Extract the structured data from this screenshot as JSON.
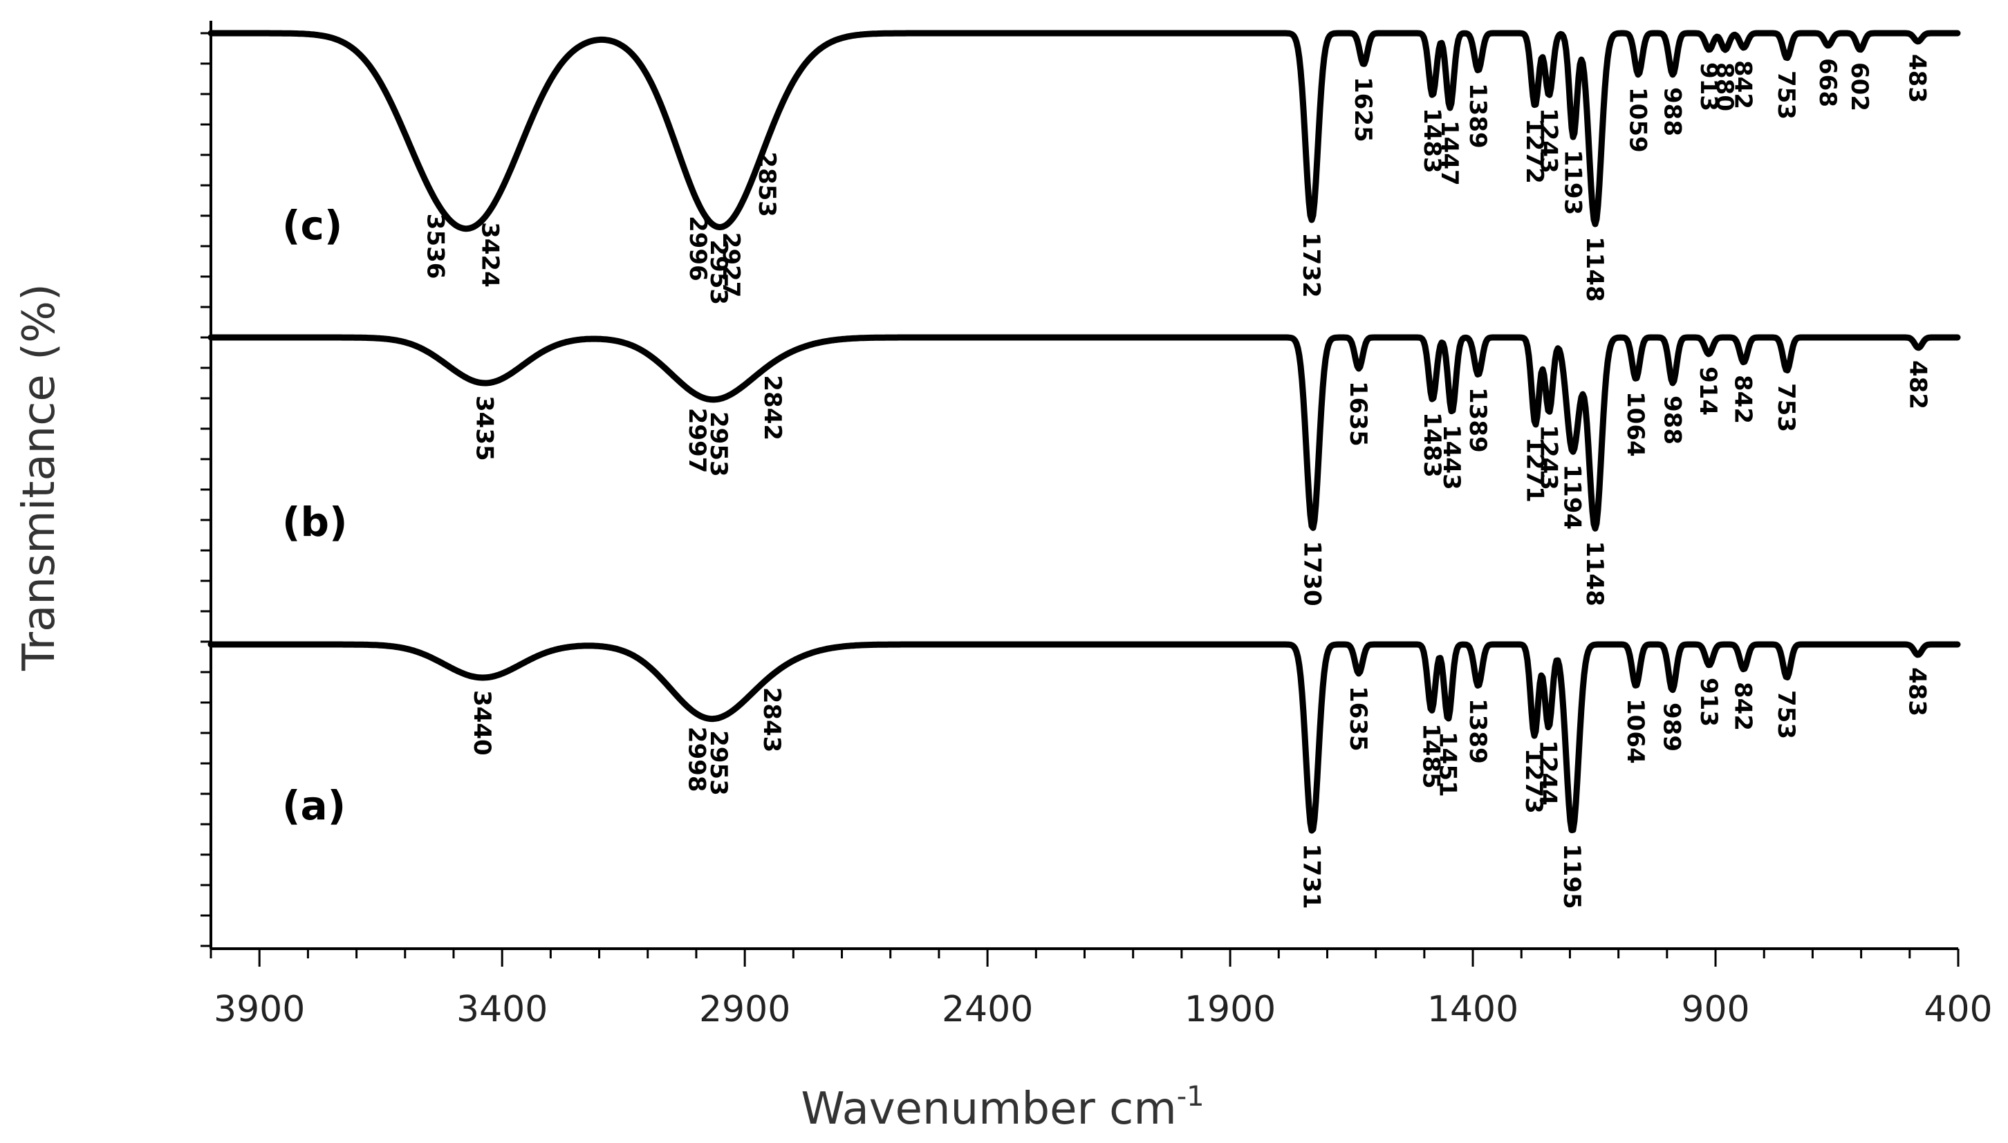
{
  "chart_data": {
    "type": "line",
    "title": "",
    "xlabel": "Wavenumber cm",
    "xlabel_sup": "-1",
    "ylabel": "Transmitance (%)",
    "xlim": [
      4000,
      400
    ],
    "xticks": [
      3900,
      3400,
      2900,
      2400,
      1900,
      1400,
      900,
      400
    ],
    "xtick_labels": [
      "3900",
      "3400",
      "2900",
      "2400",
      "1900",
      "1400",
      "900",
      "400"
    ],
    "grid": false,
    "series": [
      {
        "name": "(c)",
        "label": "(c)",
        "peaks": [
          {
            "wn": 3536,
            "label": "3536",
            "depth": 0.55
          },
          {
            "wn": 3424,
            "label": "3424",
            "depth": 0.62
          },
          {
            "wn": 2996,
            "label": "2996",
            "depth": 0.3
          },
          {
            "wn": 2953,
            "label": "2953",
            "depth": 0.36
          },
          {
            "wn": 2927,
            "label": "2927",
            "depth": 0.28
          },
          {
            "wn": 2853,
            "label": "2853",
            "depth": 0.12
          },
          {
            "wn": 1732,
            "label": "1732",
            "depth": 0.9
          },
          {
            "wn": 1625,
            "label": "1625",
            "depth": 0.15
          },
          {
            "wn": 1483,
            "label": "1483",
            "depth": 0.3
          },
          {
            "wn": 1447,
            "label": "1447",
            "depth": 0.36
          },
          {
            "wn": 1389,
            "label": "1389",
            "depth": 0.18
          },
          {
            "wn": 1272,
            "label": "1272",
            "depth": 0.35
          },
          {
            "wn": 1243,
            "label": "1243",
            "depth": 0.3
          },
          {
            "wn": 1193,
            "label": "1193",
            "depth": 0.5
          },
          {
            "wn": 1148,
            "label": "1148",
            "depth": 0.92
          },
          {
            "wn": 1059,
            "label": "1059",
            "depth": 0.2
          },
          {
            "wn": 988,
            "label": "988",
            "depth": 0.2
          },
          {
            "wn": 913,
            "label": "913",
            "depth": 0.08
          },
          {
            "wn": 880,
            "label": "880",
            "depth": 0.08
          },
          {
            "wn": 842,
            "label": "842",
            "depth": 0.07
          },
          {
            "wn": 753,
            "label": "753",
            "depth": 0.12
          },
          {
            "wn": 668,
            "label": "668",
            "depth": 0.06
          },
          {
            "wn": 602,
            "label": "602",
            "depth": 0.08
          },
          {
            "wn": 483,
            "label": "483",
            "depth": 0.04
          }
        ]
      },
      {
        "name": "(b)",
        "label": "(b)",
        "peaks": [
          {
            "wn": 3435,
            "label": "3435",
            "depth": 0.22
          },
          {
            "wn": 2997,
            "label": "2997",
            "depth": 0.12
          },
          {
            "wn": 2953,
            "label": "2953",
            "depth": 0.18
          },
          {
            "wn": 2842,
            "label": "2842",
            "depth": 0.04
          },
          {
            "wn": 1730,
            "label": "1730",
            "depth": 0.92
          },
          {
            "wn": 1635,
            "label": "1635",
            "depth": 0.15
          },
          {
            "wn": 1483,
            "label": "1483",
            "depth": 0.3
          },
          {
            "wn": 1443,
            "label": "1443",
            "depth": 0.36
          },
          {
            "wn": 1389,
            "label": "1389",
            "depth": 0.18
          },
          {
            "wn": 1271,
            "label": "1271",
            "depth": 0.42
          },
          {
            "wn": 1243,
            "label": "1243",
            "depth": 0.36
          },
          {
            "wn": 1194,
            "label": "1194",
            "depth": 0.55
          },
          {
            "wn": 1148,
            "label": "1148",
            "depth": 0.92
          },
          {
            "wn": 1064,
            "label": "1064",
            "depth": 0.2
          },
          {
            "wn": 988,
            "label": "988",
            "depth": 0.22
          },
          {
            "wn": 914,
            "label": "914",
            "depth": 0.08
          },
          {
            "wn": 842,
            "label": "842",
            "depth": 0.12
          },
          {
            "wn": 753,
            "label": "753",
            "depth": 0.16
          },
          {
            "wn": 482,
            "label": "482",
            "depth": 0.05
          }
        ]
      },
      {
        "name": "(a)",
        "label": "(a)",
        "peaks": [
          {
            "wn": 3440,
            "label": "3440",
            "depth": 0.16
          },
          {
            "wn": 2998,
            "label": "2998",
            "depth": 0.16
          },
          {
            "wn": 2953,
            "label": "2953",
            "depth": 0.2
          },
          {
            "wn": 2843,
            "label": "2843",
            "depth": 0.05
          },
          {
            "wn": 1731,
            "label": "1731",
            "depth": 0.9
          },
          {
            "wn": 1635,
            "label": "1635",
            "depth": 0.14
          },
          {
            "wn": 1485,
            "label": "1485",
            "depth": 0.32
          },
          {
            "wn": 1451,
            "label": "1451",
            "depth": 0.36
          },
          {
            "wn": 1389,
            "label": "1389",
            "depth": 0.2
          },
          {
            "wn": 1273,
            "label": "1273",
            "depth": 0.44
          },
          {
            "wn": 1244,
            "label": "1244",
            "depth": 0.4
          },
          {
            "wn": 1195,
            "label": "1195",
            "depth": 0.9
          },
          {
            "wn": 1064,
            "label": "1064",
            "depth": 0.2
          },
          {
            "wn": 989,
            "label": "989",
            "depth": 0.22
          },
          {
            "wn": 913,
            "label": "913",
            "depth": 0.1
          },
          {
            "wn": 842,
            "label": "842",
            "depth": 0.12
          },
          {
            "wn": 753,
            "label": "753",
            "depth": 0.16
          },
          {
            "wn": 483,
            "label": "483",
            "depth": 0.05
          }
        ]
      }
    ]
  }
}
